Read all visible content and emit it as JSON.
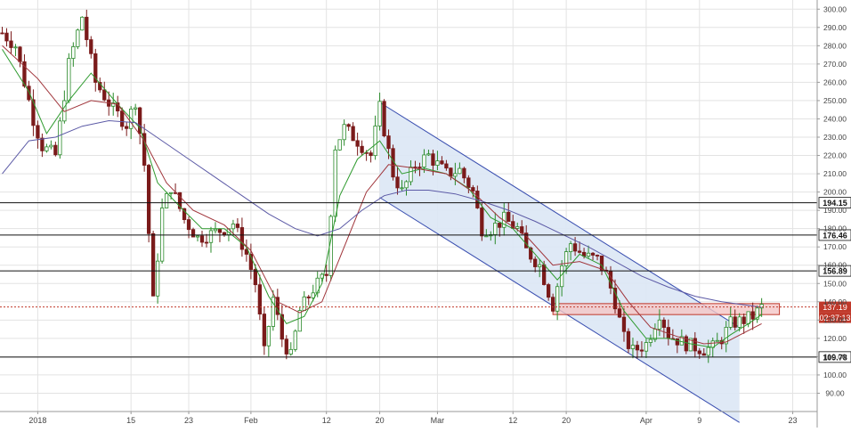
{
  "chart_data": {
    "type": "candlestick",
    "y_axis": {
      "ticks": [
        90,
        100,
        110,
        120,
        130,
        140,
        150,
        160,
        170,
        180,
        190,
        200,
        210,
        220,
        230,
        240,
        250,
        260,
        270,
        280,
        290,
        300
      ],
      "tick_labels": [
        "90.00",
        "100.00",
        "110.00",
        "120.00",
        "130.00",
        "140.00",
        "150.00",
        "160.00",
        "170.00",
        "180.00",
        "190.00",
        "200.00",
        "210.00",
        "220.00",
        "230.00",
        "240.00",
        "250.00",
        "260.00",
        "270.00",
        "280.00",
        "290.00",
        "300.00"
      ],
      "range": [
        80,
        305
      ],
      "position": "right"
    },
    "x_axis": {
      "labels": [
        "2018",
        "15",
        "23",
        "Feb",
        "12",
        "20",
        "Mar",
        "12",
        "20",
        "Apr",
        "9",
        "23"
      ],
      "label_index": [
        8,
        29,
        42,
        56,
        73,
        85,
        98,
        115,
        127,
        145,
        157,
        178
      ],
      "bar_count": 184
    },
    "horizontal_levels": [
      {
        "value": 194.15,
        "label": "194.15"
      },
      {
        "value": 176.46,
        "label": "176.46"
      },
      {
        "value": 156.89,
        "label": "156.89"
      },
      {
        "value": 109.78,
        "label": "109.78"
      }
    ],
    "current_price": {
      "value": 137.19,
      "label": "137.19",
      "countdown": "02:37:13",
      "color": "#c0392b"
    },
    "channel": {
      "upper": [
        [
          85,
          249
        ],
        [
          166,
          126
        ]
      ],
      "lower": [
        [
          85,
          197
        ],
        [
          166,
          74
        ]
      ],
      "fill": "#dce7f5",
      "stroke": "#3a4fb0"
    },
    "resistance_zone": {
      "from_index": 124,
      "to_index": 175,
      "low": 133,
      "high": 139,
      "fill": "#f4c6c6",
      "stroke": "#c0392b"
    },
    "price_path": [
      [
        0,
        287
      ],
      [
        3,
        280
      ],
      [
        7,
        240
      ],
      [
        9,
        225
      ],
      [
        12,
        220
      ],
      [
        15,
        270
      ],
      [
        18,
        296
      ],
      [
        21,
        260
      ],
      [
        25,
        245
      ],
      [
        28,
        237
      ],
      [
        30,
        250
      ],
      [
        32,
        215
      ],
      [
        34,
        140
      ],
      [
        36,
        190
      ],
      [
        38,
        203
      ],
      [
        41,
        185
      ],
      [
        44,
        175
      ],
      [
        47,
        177
      ],
      [
        50,
        180
      ],
      [
        52,
        183
      ],
      [
        55,
        166
      ],
      [
        57,
        150
      ],
      [
        59,
        112
      ],
      [
        61,
        142
      ],
      [
        63,
        120
      ],
      [
        65,
        110
      ],
      [
        67,
        135
      ],
      [
        70,
        147
      ],
      [
        73,
        155
      ],
      [
        75,
        225
      ],
      [
        77,
        235
      ],
      [
        80,
        228
      ],
      [
        83,
        220
      ],
      [
        85,
        246
      ],
      [
        88,
        210
      ],
      [
        90,
        200
      ],
      [
        93,
        215
      ],
      [
        96,
        220
      ],
      [
        100,
        210
      ],
      [
        103,
        212
      ],
      [
        106,
        200
      ],
      [
        108,
        180
      ],
      [
        110,
        180
      ],
      [
        113,
        185
      ],
      [
        116,
        180
      ],
      [
        118,
        168
      ],
      [
        121,
        160
      ],
      [
        124,
        138
      ],
      [
        126,
        160
      ],
      [
        128,
        172
      ],
      [
        131,
        165
      ],
      [
        134,
        163
      ],
      [
        136,
        155
      ],
      [
        138,
        140
      ],
      [
        140,
        120
      ],
      [
        142,
        113
      ],
      [
        145,
        117
      ],
      [
        148,
        134
      ],
      [
        150,
        122
      ],
      [
        153,
        118
      ],
      [
        155,
        116
      ],
      [
        158,
        114
      ],
      [
        160,
        115
      ],
      [
        162,
        120
      ],
      [
        164,
        128
      ],
      [
        167,
        130
      ],
      [
        169,
        132
      ],
      [
        171,
        137
      ]
    ],
    "moving_averages": [
      {
        "color": "#2e9a2e",
        "path": [
          [
            0,
            278
          ],
          [
            6,
            255
          ],
          [
            10,
            232
          ],
          [
            15,
            250
          ],
          [
            20,
            265
          ],
          [
            26,
            248
          ],
          [
            31,
            235
          ],
          [
            35,
            205
          ],
          [
            40,
            192
          ],
          [
            45,
            180
          ],
          [
            50,
            180
          ],
          [
            55,
            170
          ],
          [
            60,
            143
          ],
          [
            64,
            128
          ],
          [
            68,
            132
          ],
          [
            72,
            150
          ],
          [
            76,
            198
          ],
          [
            80,
            218
          ],
          [
            85,
            228
          ],
          [
            90,
            210
          ],
          [
            95,
            213
          ],
          [
            100,
            210
          ],
          [
            105,
            202
          ],
          [
            110,
            186
          ],
          [
            115,
            180
          ],
          [
            120,
            166
          ],
          [
            125,
            152
          ],
          [
            130,
            166
          ],
          [
            135,
            160
          ],
          [
            140,
            135
          ],
          [
            145,
            120
          ],
          [
            150,
            120
          ],
          [
            155,
            117
          ],
          [
            160,
            115
          ],
          [
            164,
            122
          ],
          [
            168,
            128
          ],
          [
            171,
            133
          ]
        ]
      },
      {
        "color": "#a0343a",
        "path": [
          [
            0,
            280
          ],
          [
            8,
            262
          ],
          [
            14,
            244
          ],
          [
            20,
            250
          ],
          [
            26,
            248
          ],
          [
            32,
            228
          ],
          [
            37,
            205
          ],
          [
            43,
            190
          ],
          [
            50,
            182
          ],
          [
            56,
            168
          ],
          [
            62,
            140
          ],
          [
            67,
            134
          ],
          [
            72,
            140
          ],
          [
            77,
            170
          ],
          [
            82,
            200
          ],
          [
            87,
            215
          ],
          [
            93,
            213
          ],
          [
            100,
            210
          ],
          [
            106,
            200
          ],
          [
            112,
            186
          ],
          [
            118,
            176
          ],
          [
            124,
            160
          ],
          [
            130,
            162
          ],
          [
            136,
            157
          ],
          [
            141,
            140
          ],
          [
            146,
            126
          ],
          [
            152,
            121
          ],
          [
            158,
            117
          ],
          [
            163,
            118
          ],
          [
            167,
            123
          ],
          [
            171,
            128
          ]
        ]
      },
      {
        "color": "#5c5aa6",
        "path": [
          [
            0,
            210
          ],
          [
            6,
            228
          ],
          [
            12,
            230
          ],
          [
            18,
            236
          ],
          [
            24,
            239
          ],
          [
            30,
            238
          ],
          [
            36,
            228
          ],
          [
            42,
            218
          ],
          [
            48,
            208
          ],
          [
            54,
            198
          ],
          [
            60,
            188
          ],
          [
            66,
            180
          ],
          [
            71,
            176
          ],
          [
            76,
            180
          ],
          [
            81,
            190
          ],
          [
            86,
            198
          ],
          [
            91,
            201
          ],
          [
            96,
            201
          ],
          [
            102,
            199
          ],
          [
            108,
            195
          ],
          [
            114,
            190
          ],
          [
            120,
            184
          ],
          [
            126,
            177
          ],
          [
            132,
            170
          ],
          [
            138,
            162
          ],
          [
            144,
            154
          ],
          [
            150,
            148
          ],
          [
            156,
            143
          ],
          [
            162,
            140
          ],
          [
            168,
            138
          ],
          [
            171,
            137
          ]
        ]
      }
    ],
    "colors": {
      "up": "#2a8a2a",
      "down": "#7a1a1a",
      "grid": "#e3e3e3",
      "axis_text": "#444444"
    }
  }
}
